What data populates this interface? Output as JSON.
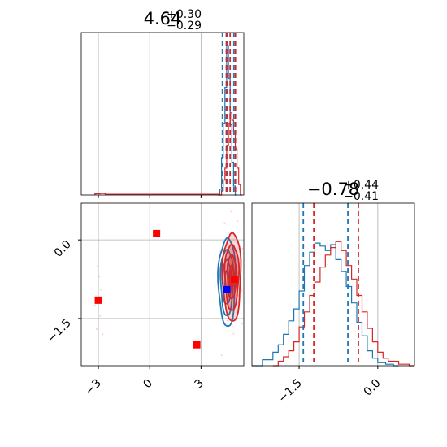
{
  "chart_data": [
    {
      "panel": "marginal-x",
      "type": "histogram",
      "title": {
        "value": "4.64",
        "plus": "+0.30",
        "minus": "−0.29"
      },
      "xlim": [
        -4,
        5.5
      ],
      "grid": true,
      "quantile_lines": {
        "blue": [
          4.25,
          4.52,
          4.92
        ],
        "red": [
          4.48,
          4.7,
          5.01
        ]
      },
      "series": [
        {
          "color": "#1f77b4",
          "bins": [
            [
              4.0,
              0.0
            ],
            [
              4.1,
              0.04
            ],
            [
              4.2,
              0.25
            ],
            [
              4.3,
              0.48
            ],
            [
              4.4,
              0.72
            ],
            [
              4.5,
              1.0
            ],
            [
              4.6,
              0.78
            ],
            [
              4.7,
              0.47
            ],
            [
              4.8,
              0.22
            ],
            [
              4.9,
              0.06
            ],
            [
              5.0,
              0.0
            ]
          ]
        },
        {
          "color": "#d62728",
          "bins": [
            [
              -3.2,
              0.008
            ],
            [
              -2.9,
              0.01
            ],
            [
              -2.6,
              0.005
            ],
            [
              4.1,
              0.0
            ],
            [
              4.2,
              0.03
            ],
            [
              4.3,
              0.1
            ],
            [
              4.4,
              0.18
            ],
            [
              4.5,
              0.33
            ],
            [
              4.6,
              0.48
            ],
            [
              4.7,
              0.55
            ],
            [
              4.8,
              0.5
            ],
            [
              4.9,
              0.42
            ],
            [
              5.0,
              0.31
            ],
            [
              5.1,
              0.18
            ],
            [
              5.2,
              0.07
            ],
            [
              5.3,
              0.0
            ]
          ]
        }
      ]
    },
    {
      "panel": "marginal-y",
      "type": "histogram",
      "title": {
        "value": "−0.78",
        "plus": "+0.44",
        "minus": "−0.41"
      },
      "xlim": [
        -2.4,
        0.7
      ],
      "xticks": [
        -1.5,
        0.0
      ],
      "xtick_labels": [
        "−1.5",
        "0.0"
      ],
      "grid": true,
      "quantile_lines": {
        "blue": [
          -1.42,
          -0.57
        ],
        "red": [
          -1.22,
          -0.37
        ]
      },
      "series": [
        {
          "color": "#1f77b4",
          "bins": [
            [
              -2.4,
              0.0
            ],
            [
              -2.2,
              0.04
            ],
            [
              -2.0,
              0.09
            ],
            [
              -1.9,
              0.14
            ],
            [
              -1.8,
              0.21
            ],
            [
              -1.7,
              0.3
            ],
            [
              -1.6,
              0.38
            ],
            [
              -1.5,
              0.5
            ],
            [
              -1.4,
              0.67
            ],
            [
              -1.3,
              0.76
            ],
            [
              -1.2,
              0.82
            ],
            [
              -1.1,
              0.8
            ],
            [
              -1.0,
              0.77
            ],
            [
              -0.9,
              0.81
            ],
            [
              -0.8,
              0.71
            ],
            [
              -0.7,
              0.63
            ],
            [
              -0.6,
              0.53
            ],
            [
              -0.5,
              0.42
            ],
            [
              -0.4,
              0.29
            ],
            [
              -0.3,
              0.2
            ],
            [
              -0.2,
              0.1
            ],
            [
              -0.1,
              0.05
            ],
            [
              0.0,
              0.02
            ],
            [
              0.15,
              0.01
            ],
            [
              0.3,
              0.0
            ]
          ]
        },
        {
          "color": "#d62728",
          "bins": [
            [
              -2.0,
              0.0
            ],
            [
              -1.9,
              0.03
            ],
            [
              -1.8,
              0.06
            ],
            [
              -1.7,
              0.1
            ],
            [
              -1.6,
              0.16
            ],
            [
              -1.5,
              0.26
            ],
            [
              -1.4,
              0.36
            ],
            [
              -1.3,
              0.47
            ],
            [
              -1.2,
              0.56
            ],
            [
              -1.1,
              0.66
            ],
            [
              -1.0,
              0.74
            ],
            [
              -0.9,
              0.79
            ],
            [
              -0.8,
              0.83
            ],
            [
              -0.7,
              0.77
            ],
            [
              -0.6,
              0.67
            ],
            [
              -0.5,
              0.58
            ],
            [
              -0.4,
              0.47
            ],
            [
              -0.3,
              0.36
            ],
            [
              -0.2,
              0.25
            ],
            [
              -0.1,
              0.16
            ],
            [
              0.0,
              0.09
            ],
            [
              0.1,
              0.05
            ],
            [
              0.2,
              0.03
            ],
            [
              0.4,
              0.01
            ],
            [
              0.6,
              0.0
            ]
          ]
        }
      ]
    },
    {
      "panel": "joint",
      "type": "scatter",
      "xlim": [
        -4,
        5.5
      ],
      "ylim": [
        -2.4,
        0.7
      ],
      "xticks": [
        -3,
        0,
        3
      ],
      "xtick_labels": [
        "−3",
        "0",
        "3"
      ],
      "yticks": [
        0.0,
        -1.5
      ],
      "ytick_labels": [
        "0.0",
        "−1.5"
      ],
      "grid": true,
      "blue_contours": {
        "center": [
          4.52,
          -0.8
        ],
        "spread": [
          0.25,
          0.42
        ],
        "levels": [
          0.5,
          1.0,
          1.5,
          2.0
        ]
      },
      "red_contours": {
        "center": [
          4.8,
          -0.7
        ],
        "spread": [
          0.27,
          0.42
        ],
        "levels": [
          0.5,
          1.0,
          1.5,
          2.0
        ]
      },
      "markers": [
        {
          "x": 0.4,
          "y": 0.12,
          "color": "#ff0000"
        },
        {
          "x": -3.0,
          "y": -1.15,
          "color": "#ff0000"
        },
        {
          "x": 2.75,
          "y": -2.0,
          "color": "#ff0000"
        },
        {
          "x": 4.95,
          "y": -0.75,
          "color": "#ff0000"
        },
        {
          "x": 4.5,
          "y": -0.95,
          "color": "#0000ff"
        }
      ],
      "faint_points": [
        {
          "x": -3.05,
          "y": -0.5
        },
        {
          "x": -2.85,
          "y": -0.95
        },
        {
          "x": -3.2,
          "y": -1.25
        },
        {
          "x": -2.9,
          "y": -1.45
        },
        {
          "x": -3.1,
          "y": -1.7
        },
        {
          "x": -2.75,
          "y": -1.8
        },
        {
          "x": -3.3,
          "y": -2.0
        },
        {
          "x": -2.95,
          "y": -0.7
        },
        {
          "x": 4.05,
          "y": 0.3
        },
        {
          "x": 5.35,
          "y": 0.15
        },
        {
          "x": 4.2,
          "y": -2.2
        },
        {
          "x": 5.4,
          "y": -1.6
        }
      ]
    }
  ]
}
